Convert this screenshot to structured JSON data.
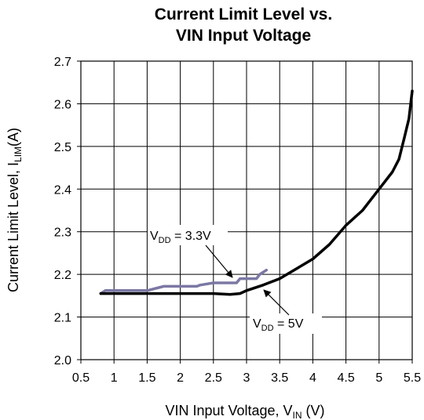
{
  "chart_data": {
    "type": "line",
    "title_line1": "Current Limit Level vs.",
    "title_line2": "VIN Input Voltage",
    "xlabel": {
      "main": "VIN Input Voltage, V",
      "sub": "IN",
      "suffix": " (V)"
    },
    "ylabel": {
      "main": "Current Limit Level, I",
      "sub": "LIM",
      "suffix": "(A)"
    },
    "xlim": [
      0.5,
      5.5
    ],
    "ylim": [
      2.0,
      2.7
    ],
    "xticks": [
      0.5,
      1,
      1.5,
      2,
      2.5,
      3,
      3.5,
      4,
      4.5,
      5,
      5.5
    ],
    "xtick_labels": [
      "0.5",
      "1",
      "1.5",
      "2",
      "2.5",
      "3",
      "3.5",
      "4",
      "4.5",
      "5",
      "5.5"
    ],
    "yticks": [
      2.0,
      2.1,
      2.2,
      2.3,
      2.4,
      2.5,
      2.6,
      2.7
    ],
    "ytick_labels": [
      "2.0",
      "2.1",
      "2.2",
      "2.3",
      "2.4",
      "2.5",
      "2.6",
      "2.7"
    ],
    "grid": true,
    "series": [
      {
        "name": "VDD = 3.3V",
        "label_main": "V",
        "label_sub": "DD",
        "label_suffix": " = 3.3V",
        "color": "#7b78a4",
        "x": [
          0.8,
          0.87,
          1.0,
          1.25,
          1.5,
          1.7,
          1.75,
          2.0,
          2.25,
          2.3,
          2.5,
          2.55,
          2.75,
          2.85,
          2.9,
          3.0,
          3.1,
          3.15,
          3.2,
          3.3
        ],
        "y": [
          2.155,
          2.162,
          2.162,
          2.162,
          2.162,
          2.17,
          2.172,
          2.172,
          2.172,
          2.175,
          2.18,
          2.18,
          2.18,
          2.18,
          2.19,
          2.19,
          2.19,
          2.19,
          2.2,
          2.21
        ]
      },
      {
        "name": "VDD = 5V",
        "label_main": "V",
        "label_sub": "DD",
        "label_suffix": " = 5V",
        "color": "#000000",
        "x": [
          0.8,
          1.0,
          1.5,
          2.0,
          2.5,
          2.75,
          2.9,
          3.0,
          3.25,
          3.5,
          3.75,
          4.0,
          4.25,
          4.5,
          4.75,
          5.0,
          5.2,
          5.3,
          5.38,
          5.45,
          5.5
        ],
        "y": [
          2.155,
          2.155,
          2.155,
          2.155,
          2.155,
          2.153,
          2.155,
          2.162,
          2.175,
          2.19,
          2.213,
          2.236,
          2.27,
          2.315,
          2.35,
          2.4,
          2.44,
          2.47,
          2.52,
          2.565,
          2.63
        ]
      }
    ]
  }
}
